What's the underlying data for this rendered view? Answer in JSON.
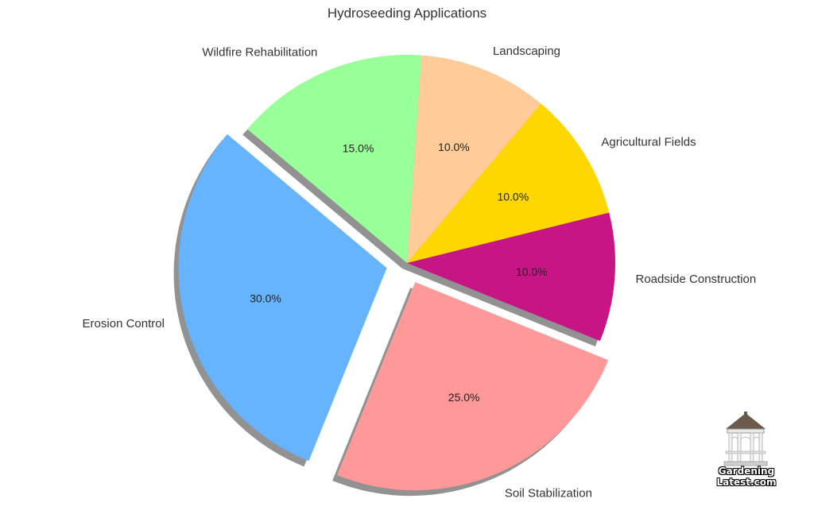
{
  "chart_data": {
    "type": "pie",
    "title": "Hydroseeding Applications",
    "categories": [
      "Erosion Control",
      "Soil Stabilization",
      "Roadside Construction",
      "Agricultural Fields",
      "Landscaping",
      "Wildfire Rehabilitation"
    ],
    "values": [
      30,
      25,
      10,
      10,
      10,
      15
    ],
    "percent_labels": [
      "30.0%",
      "25.0%",
      "10.0%",
      "10.0%",
      "10.0%",
      "15.0%"
    ],
    "colors": [
      "#66b3ff",
      "#ff9999",
      "#c71585",
      "#ffd700",
      "#ffcc99",
      "#99ff99"
    ],
    "exploded": [
      true,
      true,
      false,
      false,
      false,
      false
    ],
    "shadow": true,
    "start_angle_deg": 140,
    "legend": "none"
  },
  "logo": {
    "line1": "Gardening",
    "line2": "Latest.com"
  }
}
